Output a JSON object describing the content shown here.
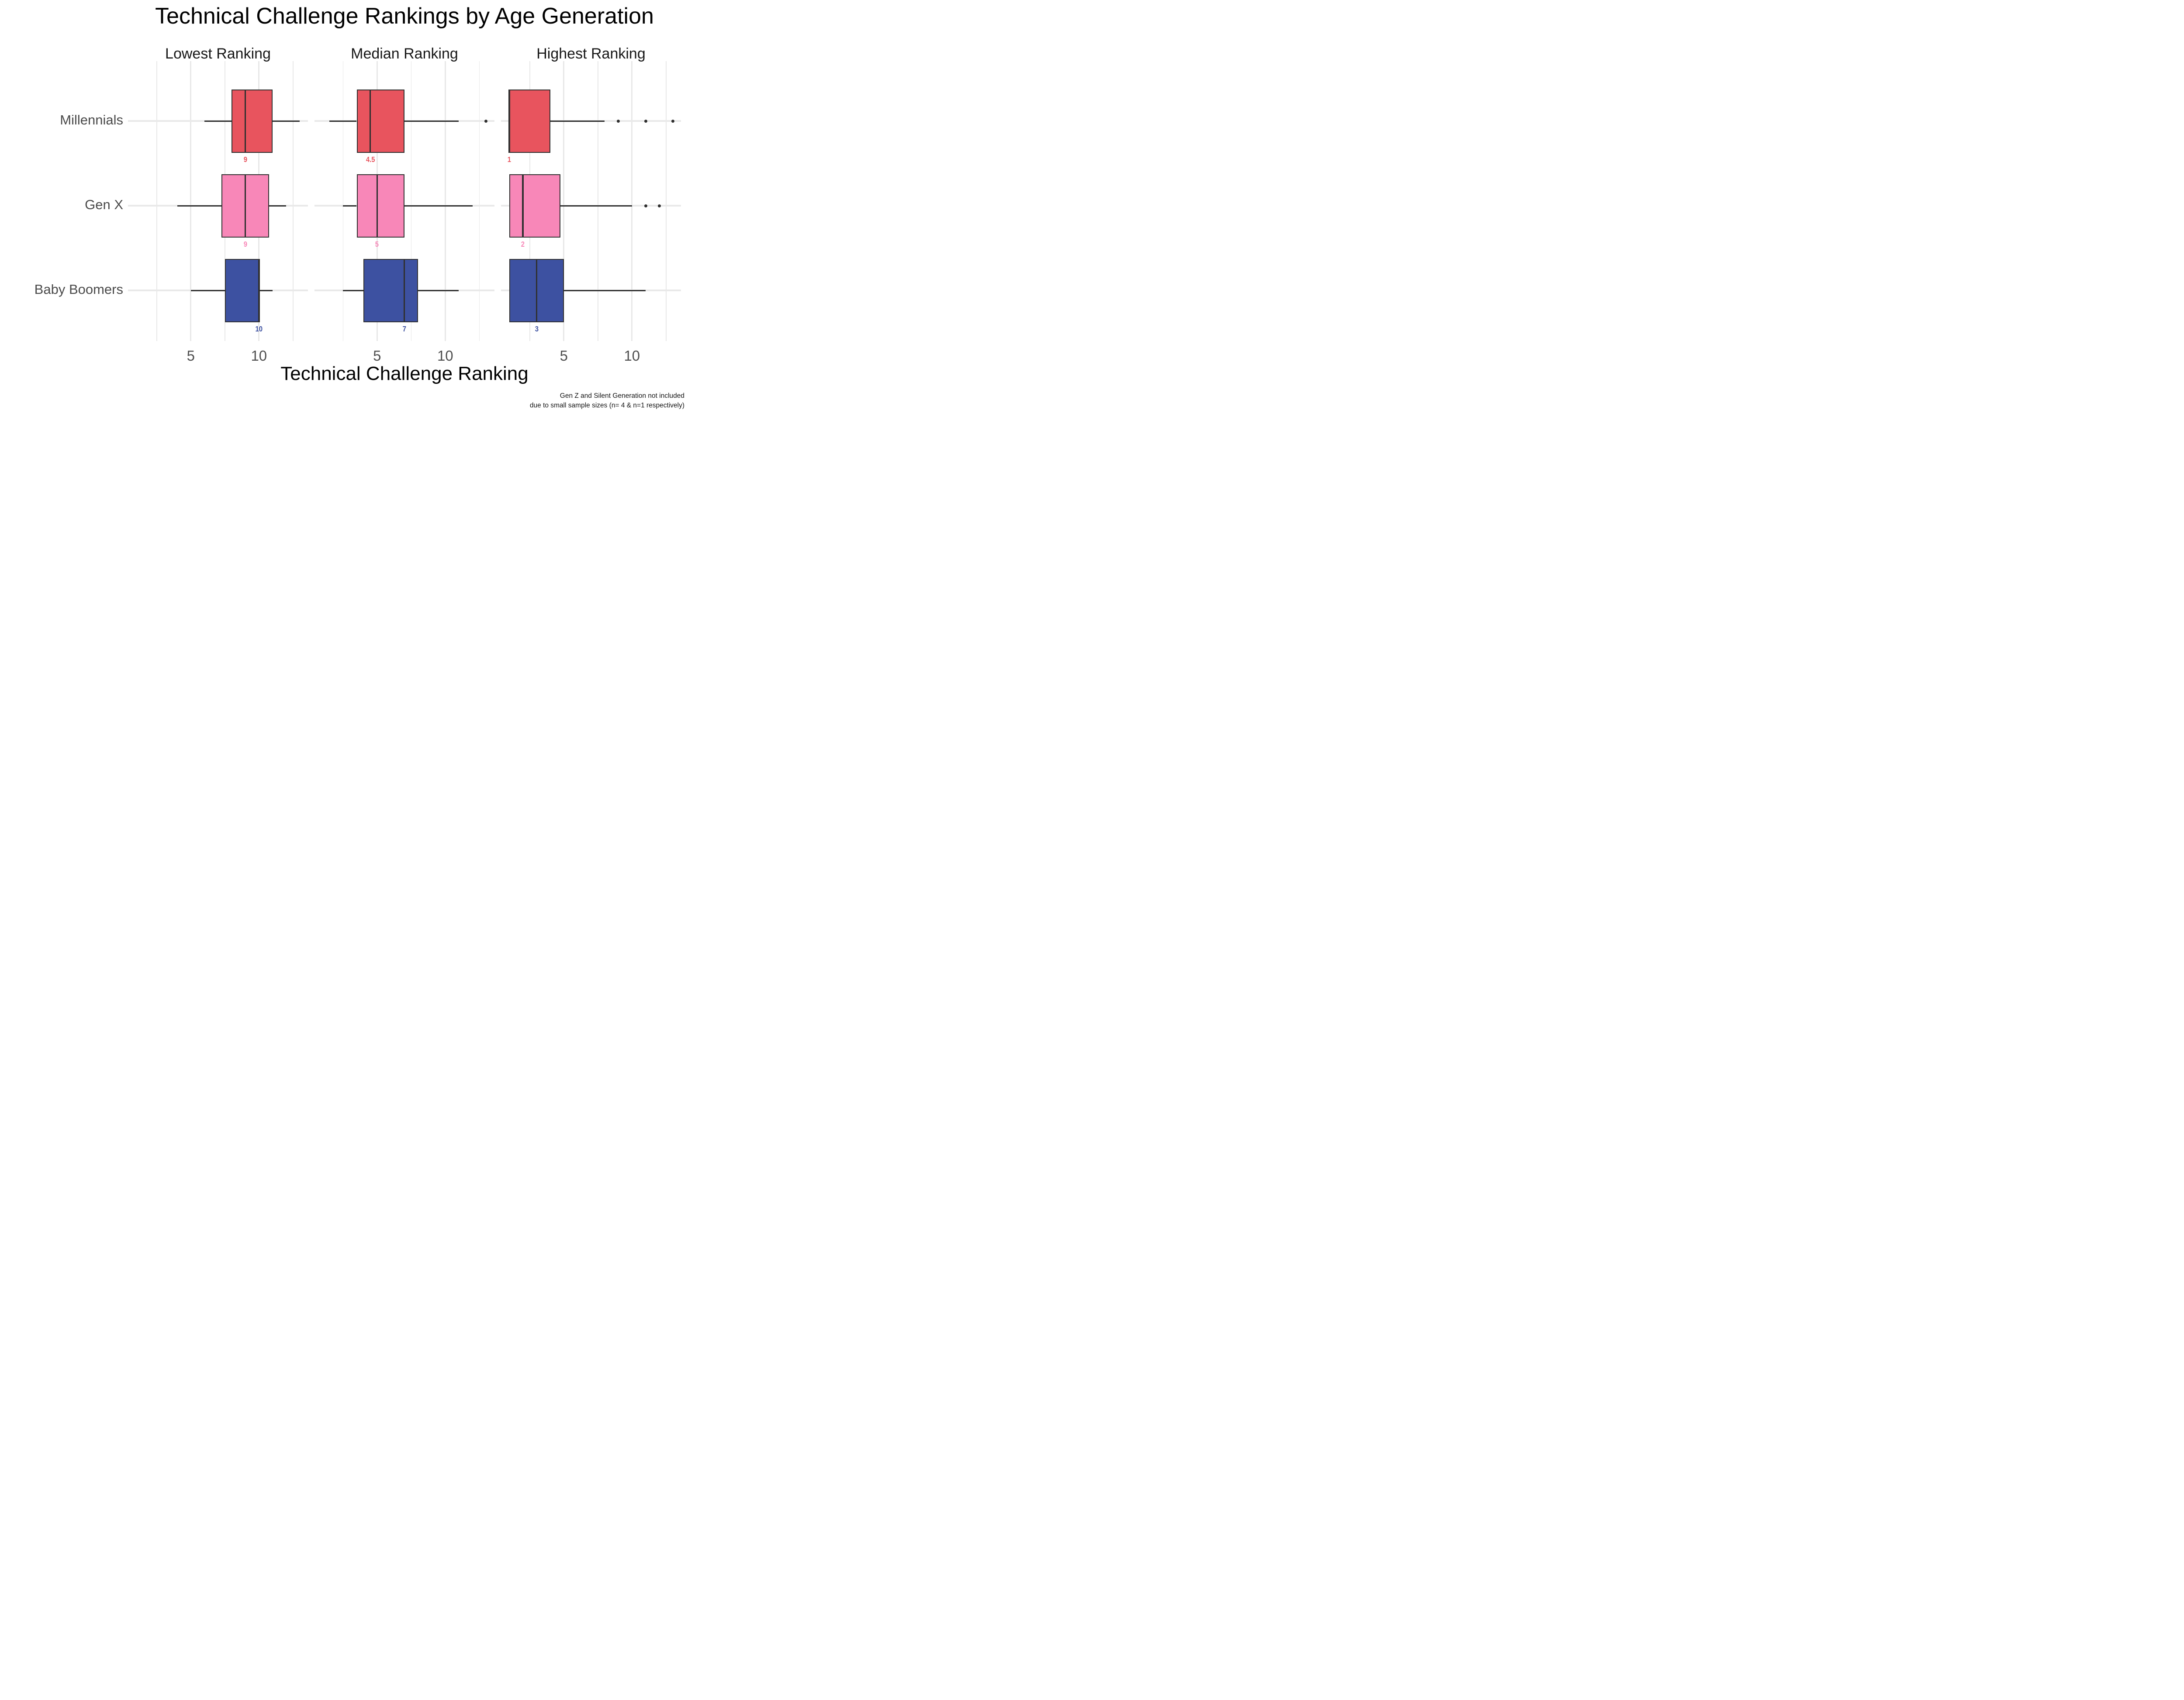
{
  "title": "Technical Challenge Rankings by Age Generation",
  "axis": {
    "x_title": "Technical Challenge Ranking",
    "tick_labels": [
      "5",
      "10"
    ],
    "tick_values": [
      5,
      10
    ],
    "gridline_values": [
      2.5,
      5,
      7.5,
      10,
      12.5
    ],
    "xlim": [
      0.4,
      13.6
    ]
  },
  "caption": {
    "line1": "Gen Z and Silent Generation not included",
    "line2": "due to small sample sizes (n= 4 & n=1 respectively)"
  },
  "generations": [
    {
      "label": "Millennials",
      "color": "#e8545e"
    },
    {
      "label": "Gen X",
      "color": "#f887b8"
    },
    {
      "label": "Baby Boomers",
      "color": "#3d51a1"
    }
  ],
  "style": {
    "box_border": "#303030",
    "whisker_color": "#2f2f2f",
    "gridline_color": "#e8e8e8",
    "tick_color": "#4f4f4f",
    "ylabel_color": "#4a4a4a",
    "facet_title_color": "#181818",
    "title_color": "#000000",
    "background": "#ffffff"
  },
  "chart_data": {
    "type": "boxplot",
    "orientation": "horizontal",
    "title": "Technical Challenge Rankings by Age Generation",
    "xlabel": "Technical Challenge Ranking",
    "xlim": [
      0.4,
      13.6
    ],
    "x_ticks": [
      5,
      10
    ],
    "x_gridlines": [
      2.5,
      5,
      7.5,
      10,
      12.5
    ],
    "categories": [
      "Millennials",
      "Gen X",
      "Baby Boomers"
    ],
    "facets": [
      {
        "title": "Lowest Ranking",
        "boxes": [
          {
            "generation": "Millennials",
            "low": 6,
            "q1": 8,
            "median": 9,
            "q3": 11,
            "high": 13,
            "outliers": [],
            "median_label": "9"
          },
          {
            "generation": "Gen X",
            "low": 4,
            "q1": 7.25,
            "median": 9,
            "q3": 10.75,
            "high": 12,
            "outliers": [],
            "median_label": "9"
          },
          {
            "generation": "Baby Boomers",
            "low": 5,
            "q1": 7.5,
            "median": 10,
            "q3": 10,
            "high": 11,
            "outliers": [],
            "median_label": "10"
          }
        ]
      },
      {
        "title": "Median Ranking",
        "boxes": [
          {
            "generation": "Millennials",
            "low": 1.5,
            "q1": 3.5,
            "median": 4.5,
            "q3": 7,
            "high": 11,
            "outliers": [
              13
            ],
            "median_label": "4.5"
          },
          {
            "generation": "Gen X",
            "low": 2.5,
            "q1": 3.5,
            "median": 5,
            "q3": 7,
            "high": 12,
            "outliers": [],
            "median_label": "5"
          },
          {
            "generation": "Baby Boomers",
            "low": 2.5,
            "q1": 4,
            "median": 7,
            "q3": 8,
            "high": 11,
            "outliers": [],
            "median_label": "7"
          }
        ]
      },
      {
        "title": "Highest Ranking",
        "boxes": [
          {
            "generation": "Millennials",
            "low": 1,
            "q1": 1,
            "median": 1,
            "q3": 4,
            "high": 8,
            "outliers": [
              9,
              11,
              13
            ],
            "median_label": "1"
          },
          {
            "generation": "Gen X",
            "low": 1,
            "q1": 1,
            "median": 2,
            "q3": 4.75,
            "high": 10,
            "outliers": [
              11,
              12
            ],
            "median_label": "2"
          },
          {
            "generation": "Baby Boomers",
            "low": 1,
            "q1": 1,
            "median": 3,
            "q3": 5,
            "high": 11,
            "outliers": [],
            "median_label": "3"
          }
        ]
      }
    ]
  }
}
